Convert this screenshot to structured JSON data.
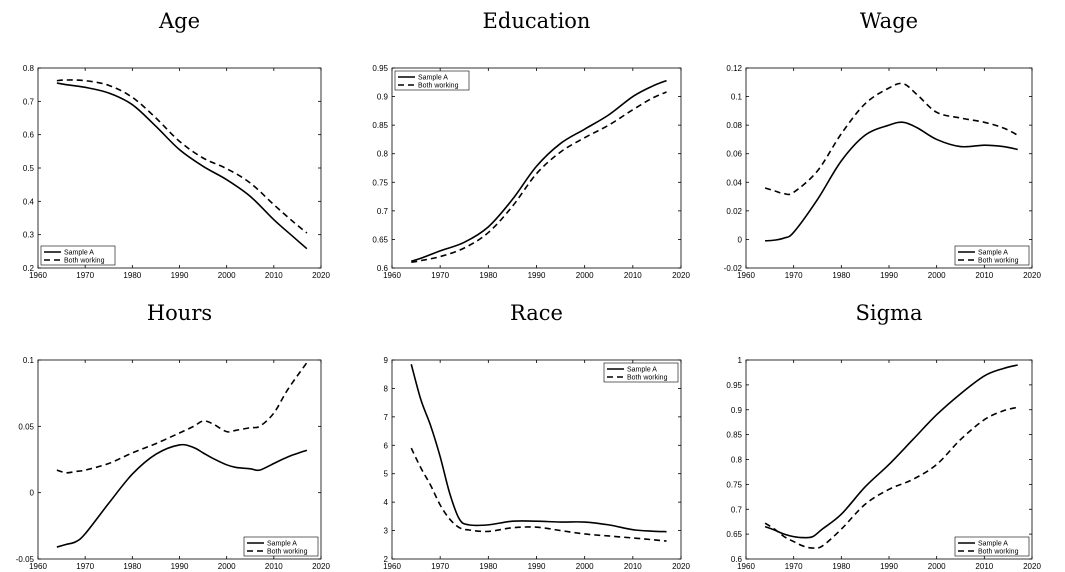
{
  "chart_data": [
    {
      "type": "line",
      "title": "Age",
      "xlim": [
        1960,
        2020
      ],
      "ylim": [
        0.2,
        0.8
      ],
      "xticks": [
        1960,
        1970,
        1980,
        1990,
        2000,
        2010,
        2020
      ],
      "yticks": [
        "0.2",
        "0.3",
        "0.4",
        "0.5",
        "0.6",
        "0.7",
        "0.8"
      ],
      "legend": "bottom-left",
      "x": [
        1964,
        1966,
        1970,
        1975,
        1980,
        1985,
        1990,
        1995,
        2000,
        2005,
        2010,
        2014,
        2017
      ],
      "series": [
        {
          "name": "Sample A",
          "style": "solid",
          "values": [
            0.755,
            0.75,
            0.742,
            0.725,
            0.69,
            0.625,
            0.555,
            0.505,
            0.465,
            0.415,
            0.345,
            0.295,
            0.258
          ]
        },
        {
          "name": "Both working",
          "style": "dashed",
          "values": [
            0.762,
            0.764,
            0.762,
            0.748,
            0.712,
            0.65,
            0.58,
            0.53,
            0.498,
            0.455,
            0.39,
            0.34,
            0.305
          ]
        }
      ]
    },
    {
      "type": "line",
      "title": "Education",
      "xlim": [
        1960,
        2020
      ],
      "ylim": [
        0.6,
        0.95
      ],
      "xticks": [
        1960,
        1970,
        1980,
        1990,
        2000,
        2010,
        2020
      ],
      "yticks": [
        "0.6",
        "0.65",
        "0.7",
        "0.75",
        "0.8",
        "0.85",
        "0.9",
        "0.95"
      ],
      "legend": "top-left",
      "x": [
        1964,
        1966,
        1970,
        1975,
        1980,
        1985,
        1990,
        1995,
        2000,
        2005,
        2010,
        2014,
        2017
      ],
      "series": [
        {
          "name": "Sample A",
          "style": "solid",
          "values": [
            0.612,
            0.617,
            0.63,
            0.645,
            0.672,
            0.72,
            0.778,
            0.818,
            0.843,
            0.868,
            0.9,
            0.918,
            0.928
          ]
        },
        {
          "name": "Both working",
          "style": "dashed",
          "values": [
            0.61,
            0.613,
            0.62,
            0.635,
            0.662,
            0.708,
            0.765,
            0.803,
            0.828,
            0.85,
            0.877,
            0.897,
            0.908
          ]
        }
      ]
    },
    {
      "type": "line",
      "title": "Wage",
      "xlim": [
        1960,
        2020
      ],
      "ylim": [
        -0.02,
        0.12
      ],
      "xticks": [
        1960,
        1970,
        1980,
        1990,
        2000,
        2010,
        2020
      ],
      "yticks": [
        "-0.02",
        "0",
        "0.02",
        "0.04",
        "0.06",
        "0.08",
        "0.1",
        "0.12"
      ],
      "legend": "bottom-right",
      "x": [
        1964,
        1966,
        1968,
        1970,
        1975,
        1980,
        1985,
        1990,
        1993,
        1996,
        2000,
        2005,
        2010,
        2014,
        2017
      ],
      "series": [
        {
          "name": "Sample A",
          "style": "solid",
          "values": [
            -0.001,
            -0.0005,
            0.001,
            0.005,
            0.028,
            0.055,
            0.073,
            0.08,
            0.082,
            0.078,
            0.07,
            0.065,
            0.066,
            0.065,
            0.063
          ]
        },
        {
          "name": "Both working",
          "style": "dashed",
          "values": [
            0.036,
            0.034,
            0.032,
            0.033,
            0.048,
            0.074,
            0.095,
            0.106,
            0.109,
            0.101,
            0.089,
            0.085,
            0.082,
            0.078,
            0.073
          ]
        }
      ]
    },
    {
      "type": "line",
      "title": "Hours",
      "xlim": [
        1960,
        2020
      ],
      "ylim": [
        -0.05,
        0.1
      ],
      "xticks": [
        1960,
        1970,
        1980,
        1990,
        2000,
        2010,
        2020
      ],
      "yticks": [
        "-0.05",
        "0",
        "0.05",
        "0.1"
      ],
      "legend": "bottom-right",
      "x": [
        1964,
        1966,
        1968,
        1970,
        1975,
        1980,
        1985,
        1990,
        1993,
        1995,
        1997,
        2000,
        2002,
        2005,
        2007,
        2010,
        2013,
        2017
      ],
      "series": [
        {
          "name": "Sample A",
          "style": "solid",
          "values": [
            -0.041,
            -0.039,
            -0.037,
            -0.031,
            -0.008,
            0.014,
            0.029,
            0.036,
            0.034,
            0.03,
            0.026,
            0.021,
            0.019,
            0.018,
            0.017,
            0.022,
            0.027,
            0.032
          ]
        },
        {
          "name": "Both working",
          "style": "dashed",
          "values": [
            0.017,
            0.015,
            0.016,
            0.017,
            0.022,
            0.03,
            0.037,
            0.045,
            0.05,
            0.054,
            0.052,
            0.046,
            0.047,
            0.049,
            0.05,
            0.06,
            0.078,
            0.098
          ]
        }
      ]
    },
    {
      "type": "line",
      "title": "Race",
      "xlim": [
        1960,
        2020
      ],
      "ylim": [
        2,
        9
      ],
      "xticks": [
        1960,
        1970,
        1980,
        1990,
        2000,
        2010,
        2020
      ],
      "yticks": [
        "2",
        "3",
        "4",
        "5",
        "6",
        "7",
        "8",
        "9"
      ],
      "legend": "top-right",
      "x": [
        1964,
        1966,
        1968,
        1970,
        1972,
        1974,
        1976,
        1980,
        1985,
        1990,
        1995,
        2000,
        2005,
        2010,
        2014,
        2017
      ],
      "series": [
        {
          "name": "Sample A",
          "style": "solid",
          "values": [
            8.85,
            7.6,
            6.7,
            5.6,
            4.3,
            3.4,
            3.2,
            3.2,
            3.33,
            3.33,
            3.3,
            3.3,
            3.2,
            3.03,
            2.98,
            2.96
          ]
        },
        {
          "name": "Both working",
          "style": "dashed",
          "values": [
            5.9,
            5.2,
            4.6,
            3.9,
            3.4,
            3.1,
            3.02,
            2.97,
            3.1,
            3.12,
            3.0,
            2.88,
            2.81,
            2.74,
            2.68,
            2.63
          ]
        }
      ]
    },
    {
      "type": "line",
      "title": "Sigma",
      "xlim": [
        1960,
        2020
      ],
      "ylim": [
        0.6,
        1.0
      ],
      "xticks": [
        1960,
        1970,
        1980,
        1990,
        2000,
        2010,
        2020
      ],
      "yticks": [
        "0.6",
        "0.65",
        "0.7",
        "0.75",
        "0.8",
        "0.85",
        "0.9",
        "0.95",
        "1"
      ],
      "legend": "bottom-right",
      "x": [
        1964,
        1966,
        1968,
        1970,
        1972,
        1974,
        1976,
        1980,
        1985,
        1990,
        1995,
        2000,
        2005,
        2010,
        2014,
        2017
      ],
      "series": [
        {
          "name": "Sample A",
          "style": "solid",
          "values": [
            0.665,
            0.658,
            0.65,
            0.645,
            0.643,
            0.645,
            0.66,
            0.69,
            0.745,
            0.79,
            0.84,
            0.89,
            0.932,
            0.968,
            0.983,
            0.99
          ]
        },
        {
          "name": "Both working",
          "style": "dashed",
          "values": [
            0.672,
            0.66,
            0.645,
            0.635,
            0.626,
            0.622,
            0.626,
            0.66,
            0.71,
            0.74,
            0.76,
            0.79,
            0.84,
            0.88,
            0.898,
            0.905
          ]
        }
      ]
    }
  ]
}
